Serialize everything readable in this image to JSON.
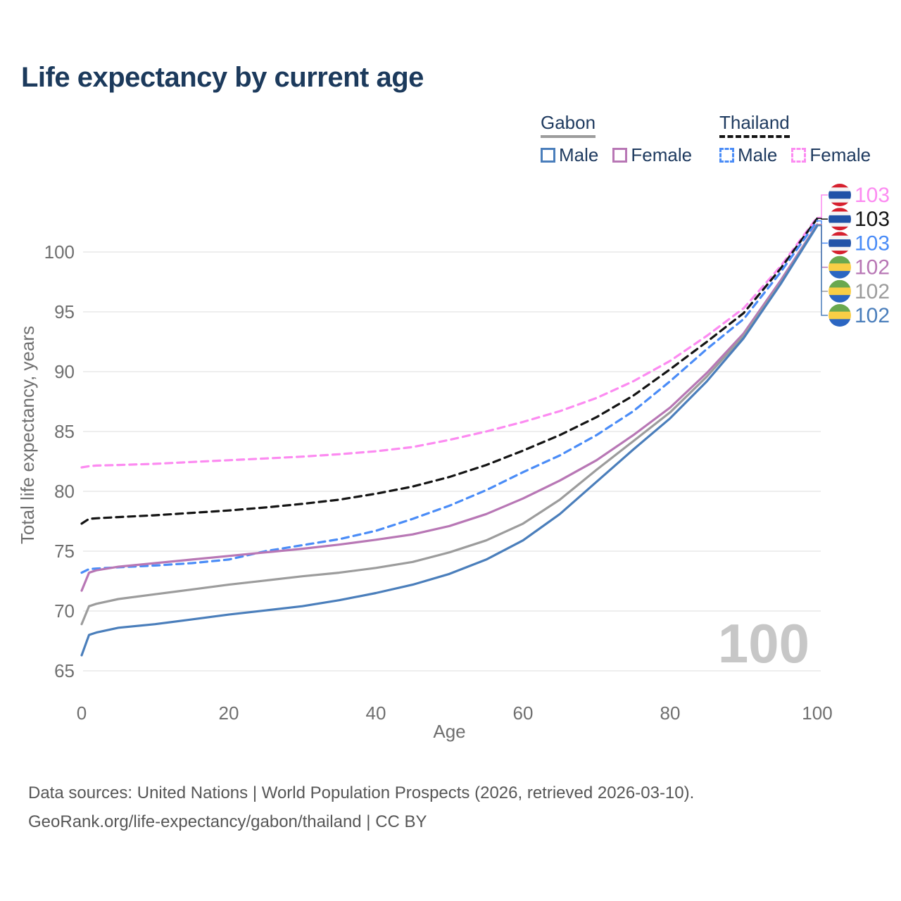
{
  "title": "Life expectancy by current age",
  "legend": {
    "groups": [
      {
        "country": "Gabon",
        "line_style": "solid",
        "underline_color": "#9c9c9c",
        "items": [
          {
            "label": "Male",
            "color": "#4a7ebb",
            "style": "solid"
          },
          {
            "label": "Female",
            "color": "#b877b5",
            "style": "solid"
          }
        ]
      },
      {
        "country": "Thailand",
        "line_style": "dashed",
        "underline_color": "#141414",
        "items": [
          {
            "label": "Male",
            "color": "#4a8cf7",
            "style": "dashed"
          },
          {
            "label": "Female",
            "color": "#fc8bf1",
            "style": "dashed"
          }
        ]
      }
    ]
  },
  "chart_data": {
    "type": "line",
    "xlabel": "Age",
    "ylabel": "Total life expectancy, years",
    "xlim": [
      0,
      100
    ],
    "ylim": [
      65,
      100
    ],
    "x_ticks": [
      0,
      20,
      40,
      60,
      80,
      100
    ],
    "y_ticks": [
      65,
      70,
      75,
      80,
      85,
      90,
      95,
      100
    ],
    "grid": "horizontal",
    "legend_position": "top-right",
    "watermark_age": "100",
    "x": [
      0,
      1,
      2,
      5,
      10,
      15,
      20,
      25,
      30,
      35,
      40,
      45,
      50,
      55,
      60,
      65,
      70,
      75,
      80,
      85,
      90,
      95,
      100
    ],
    "series": [
      {
        "name": "Thailand Female",
        "color": "#fc8bf1",
        "dashed": true,
        "flag": "thailand",
        "end_label": "103",
        "values": [
          82.0,
          82.1,
          82.15,
          82.2,
          82.3,
          82.45,
          82.6,
          82.75,
          82.9,
          83.1,
          83.35,
          83.7,
          84.3,
          85.0,
          85.8,
          86.7,
          87.8,
          89.2,
          90.9,
          93.0,
          95.3,
          98.8,
          102.9
        ]
      },
      {
        "name": "Thailand",
        "color": "#141414",
        "dashed": true,
        "flag": "thailand",
        "end_label": "103",
        "values": [
          77.3,
          77.7,
          77.75,
          77.85,
          78.0,
          78.2,
          78.4,
          78.65,
          78.95,
          79.3,
          79.8,
          80.4,
          81.2,
          82.2,
          83.4,
          84.7,
          86.2,
          88.0,
          90.2,
          92.5,
          94.9,
          98.6,
          102.8
        ]
      },
      {
        "name": "Thailand Male",
        "color": "#4a8cf7",
        "dashed": true,
        "flag": "thailand",
        "end_label": "103",
        "values": [
          73.2,
          73.5,
          73.55,
          73.65,
          73.8,
          74.0,
          74.3,
          75.0,
          75.5,
          76.0,
          76.7,
          77.7,
          78.8,
          80.1,
          81.6,
          83.0,
          84.7,
          86.7,
          89.2,
          91.9,
          94.4,
          98.3,
          102.6
        ]
      },
      {
        "name": "Gabon Female",
        "color": "#b877b5",
        "dashed": false,
        "flag": "gabon",
        "end_label": "102",
        "values": [
          71.7,
          73.2,
          73.4,
          73.7,
          74.0,
          74.3,
          74.6,
          74.9,
          75.2,
          75.55,
          75.95,
          76.4,
          77.1,
          78.1,
          79.4,
          80.9,
          82.6,
          84.7,
          87.0,
          89.9,
          93.2,
          97.6,
          102.3
        ]
      },
      {
        "name": "Gabon",
        "color": "#9c9c9c",
        "dashed": false,
        "flag": "gabon",
        "end_label": "102",
        "values": [
          68.9,
          70.4,
          70.6,
          71.0,
          71.4,
          71.8,
          72.2,
          72.55,
          72.9,
          73.2,
          73.6,
          74.1,
          74.9,
          75.9,
          77.3,
          79.3,
          81.8,
          84.2,
          86.6,
          89.6,
          93.0,
          97.4,
          102.25
        ]
      },
      {
        "name": "Gabon Male",
        "color": "#4a7ebb",
        "dashed": false,
        "flag": "gabon",
        "end_label": "102",
        "values": [
          66.3,
          68.0,
          68.2,
          68.6,
          68.9,
          69.3,
          69.7,
          70.05,
          70.4,
          70.9,
          71.5,
          72.2,
          73.1,
          74.3,
          75.9,
          78.1,
          80.8,
          83.5,
          86.1,
          89.2,
          92.8,
          97.3,
          102.2
        ]
      }
    ]
  },
  "flags": {
    "thailand": {
      "stripes": [
        {
          "color": "#d6202e",
          "h": 1
        },
        {
          "color": "#f4f4f4",
          "h": 1
        },
        {
          "color": "#2153a8",
          "h": 2
        },
        {
          "color": "#f4f4f4",
          "h": 1
        },
        {
          "color": "#d6202e",
          "h": 1
        }
      ]
    },
    "gabon": {
      "stripes": [
        {
          "color": "#6aa84f",
          "h": 1
        },
        {
          "color": "#f8ce46",
          "h": 1
        },
        {
          "color": "#2b66c2",
          "h": 1
        }
      ]
    }
  },
  "colors": {
    "title_text": "#1c3a5c",
    "axis_text": "#6f6f6f",
    "gridline": "#e8e8e8",
    "watermark": "#c7c7c7",
    "footer_text": "#565656"
  },
  "footer": {
    "line1": "Data sources: United Nations | World Population Prospects (2026, retrieved 2026-03-10).",
    "line2": "GeoRank.org/life-expectancy/gabon/thailand | CC BY"
  }
}
